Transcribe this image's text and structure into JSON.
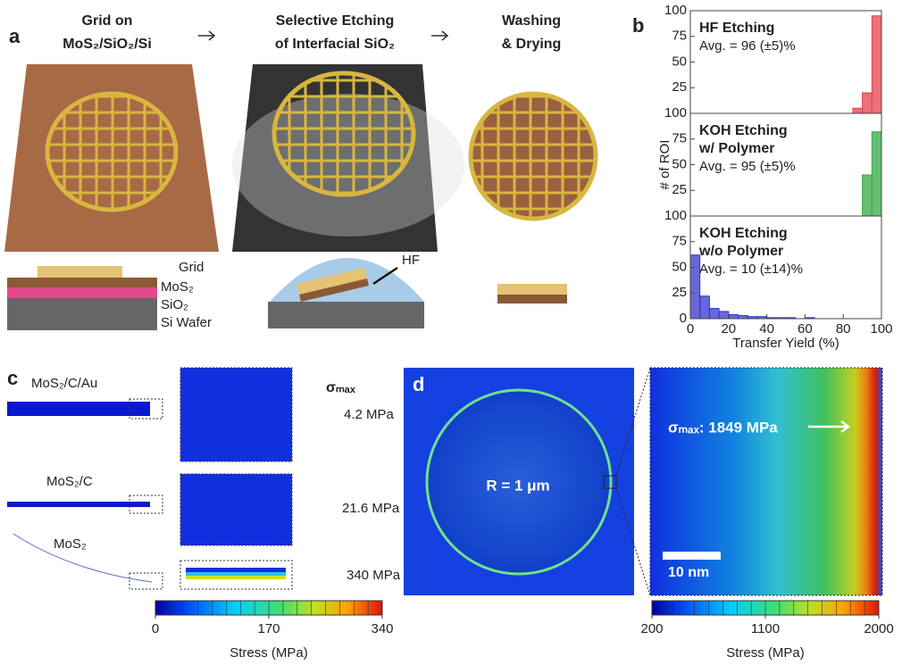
{
  "panel_a": {
    "letter": "a",
    "steps": [
      [
        "Grid on",
        "MoS₂/SiO₂/Si"
      ],
      [
        "Selective Etching",
        "of Interfacial SiO₂"
      ],
      [
        "Washing",
        "& Drying"
      ]
    ],
    "layers": [
      "Grid",
      "MoS₂",
      "SiO₂",
      "Si Wafer"
    ],
    "etchant": "HF"
  },
  "panel_b": {
    "letter": "b"
  },
  "chart_data": [
    {
      "type": "histogram",
      "title": [
        "HF Etching"
      ],
      "annotation": "Avg. = 96 (±5)%",
      "color": "#e5414b",
      "bins": [
        0,
        5,
        10,
        15,
        20,
        25,
        30,
        35,
        40,
        45,
        50,
        55,
        60,
        65,
        70,
        75,
        80,
        85,
        90,
        95,
        100
      ],
      "values": [
        0,
        0,
        0,
        0,
        0,
        0,
        0,
        0,
        0,
        0,
        0,
        0,
        0,
        0,
        0,
        0,
        0,
        5,
        20,
        95
      ],
      "ylim": [
        0,
        100
      ],
      "yticks": [
        25,
        50,
        75,
        100
      ]
    },
    {
      "type": "histogram",
      "title": [
        "KOH Etching",
        "w/ Polymer"
      ],
      "annotation": "Avg. = 95 (±5)%",
      "color": "#34a844",
      "bins": [
        0,
        5,
        10,
        15,
        20,
        25,
        30,
        35,
        40,
        45,
        50,
        55,
        60,
        65,
        70,
        75,
        80,
        85,
        90,
        95,
        100
      ],
      "values": [
        0,
        0,
        0,
        0,
        0,
        0,
        0,
        0,
        0,
        0,
        0,
        0,
        0,
        0,
        0,
        0,
        0,
        0,
        40,
        82
      ],
      "ylim": [
        0,
        100
      ],
      "yticks": [
        25,
        50,
        75,
        100
      ],
      "ylabel": "# of ROI"
    },
    {
      "type": "histogram",
      "title": [
        "KOH Etching",
        "w/o Polymer"
      ],
      "annotation": "Avg. = 10 (±14)%",
      "color": "#3434cc",
      "bins": [
        0,
        5,
        10,
        15,
        20,
        25,
        30,
        35,
        40,
        45,
        50,
        55,
        60,
        65,
        70,
        75,
        80,
        85,
        90,
        95,
        100
      ],
      "values": [
        62,
        22,
        10,
        7,
        4,
        3,
        2,
        2,
        1,
        1,
        1,
        0,
        1,
        0,
        0,
        0,
        0,
        0,
        0,
        0
      ],
      "ylim": [
        0,
        100
      ],
      "yticks": [
        0,
        25,
        50,
        75,
        100
      ],
      "xlim": [
        0,
        100
      ],
      "xticks": [
        0,
        20,
        40,
        60,
        80,
        100
      ],
      "xlabel": "Transfer Yield (%)"
    }
  ],
  "panel_c": {
    "letter": "c",
    "header": "σₘₐₓ",
    "rows": [
      {
        "name": "MoS₂/C/Au",
        "stress": "4.2 MPa"
      },
      {
        "name": "MoS₂/C",
        "stress": "21.6 MPa"
      },
      {
        "name": "MoS₂",
        "stress": "340 MPa"
      }
    ],
    "colorbar": {
      "range": [
        0,
        340
      ],
      "ticks": [
        0,
        170,
        340
      ],
      "label": "Stress (MPa)"
    }
  },
  "panel_d": {
    "letter": "d",
    "radius_label": "R = 1 μm",
    "max_label": "σₘₐₓ: 1849 MPa",
    "scale_bar": "10 nm",
    "colorbar": {
      "range": [
        200,
        2000
      ],
      "ticks": [
        200,
        1100,
        2000
      ],
      "label": "Stress (MPa)"
    }
  }
}
